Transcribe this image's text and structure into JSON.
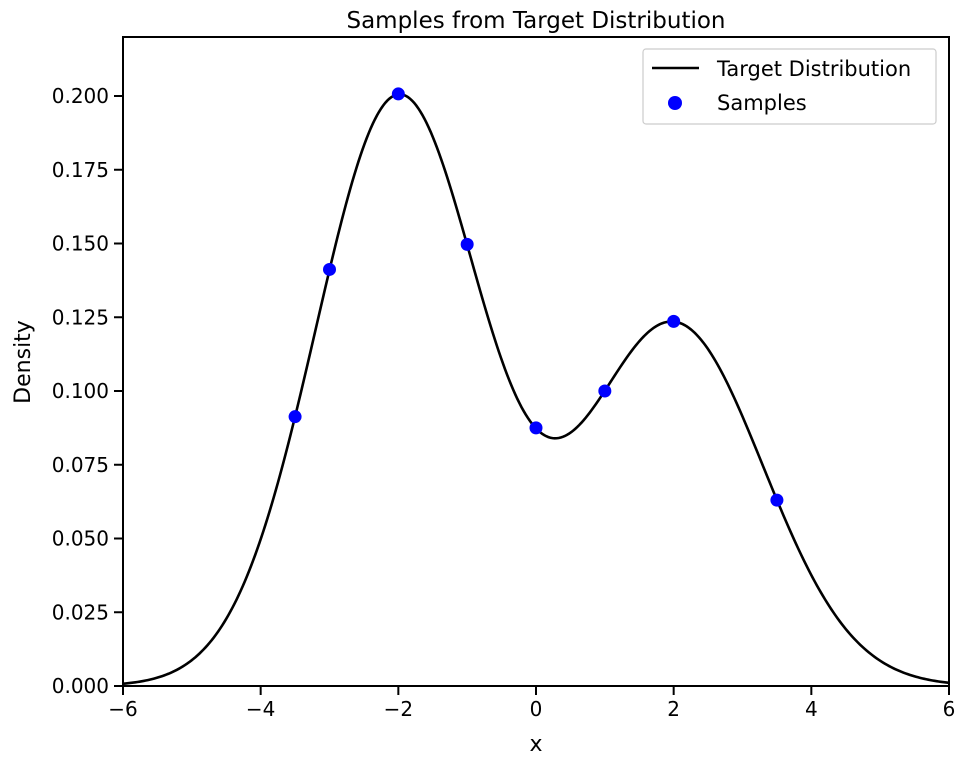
{
  "chart_data": {
    "type": "line",
    "title": "Samples from Target Distribution",
    "xlabel": "x",
    "ylabel": "Density",
    "xlim": [
      -6,
      6
    ],
    "ylim": [
      0,
      0.22
    ],
    "xticks": [
      -6,
      -4,
      -2,
      0,
      2,
      4,
      6
    ],
    "xtick_labels": [
      "−6",
      "−4",
      "−2",
      "0",
      "2",
      "4",
      "6"
    ],
    "yticks": [
      0,
      0.025,
      0.05,
      0.075,
      0.1,
      0.125,
      0.15,
      0.175,
      0.2
    ],
    "ytick_labels": [
      "0.000",
      "0.025",
      "0.050",
      "0.075",
      "0.100",
      "0.125",
      "0.150",
      "0.175",
      "0.200"
    ],
    "grid": false,
    "legend_position": "top-right",
    "series": [
      {
        "name": "Target Distribution",
        "kind": "line",
        "color": "#000000",
        "components": [
          {
            "weight": 0.6,
            "mean": -2,
            "std": 1.2
          },
          {
            "weight": 0.4,
            "mean": 2,
            "std": 1.3
          }
        ]
      },
      {
        "name": "Samples",
        "kind": "scatter",
        "color": "#0000ff",
        "x": [
          -3.5,
          -3,
          -2,
          -1,
          0,
          1,
          2,
          3.5
        ],
        "y": [
          0.0913,
          0.1412,
          0.2007,
          0.1497,
          0.0875,
          0.1,
          0.1236,
          0.063
        ]
      }
    ]
  }
}
